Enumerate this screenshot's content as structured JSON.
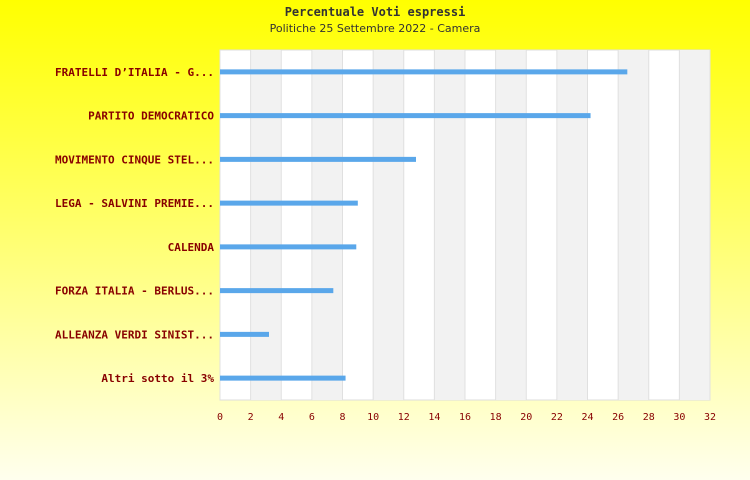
{
  "chart_data": {
    "type": "bar",
    "orientation": "horizontal",
    "title": "Percentuale Voti espressi",
    "subtitle": "Politiche 25 Settembre 2022 - Camera",
    "categories": [
      "FRATELLI D’ITALIA - G...",
      "PARTITO DEMOCRATICO",
      "MOVIMENTO CINQUE STEL...",
      "LEGA - SALVINI PREMIE...",
      "CALENDA",
      "FORZA ITALIA - BERLUS...",
      "ALLEANZA VERDI SINIST...",
      "Altri sotto il 3%"
    ],
    "values": [
      26.6,
      24.2,
      12.8,
      9.0,
      8.9,
      7.4,
      3.2,
      8.2
    ],
    "xlim": [
      0,
      32
    ],
    "x_ticks": [
      "0",
      "2",
      "4",
      "6",
      "8",
      "10",
      "12",
      "14",
      "16",
      "18",
      "20",
      "22",
      "24",
      "26",
      "28",
      "30",
      "32"
    ],
    "grid": true,
    "bar_color": "#5aa7ea"
  }
}
